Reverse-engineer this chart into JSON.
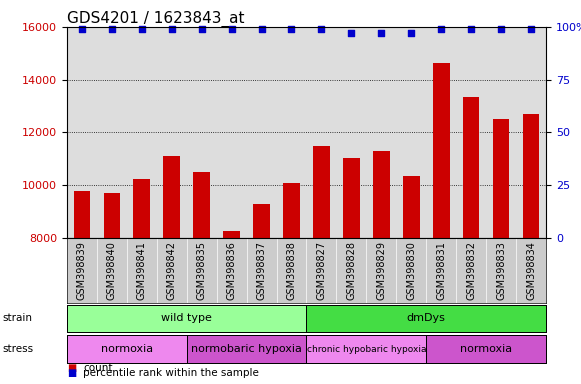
{
  "title": "GDS4201 / 1623843_at",
  "samples": [
    "GSM398839",
    "GSM398840",
    "GSM398841",
    "GSM398842",
    "GSM398835",
    "GSM398836",
    "GSM398837",
    "GSM398838",
    "GSM398827",
    "GSM398828",
    "GSM398829",
    "GSM398830",
    "GSM398831",
    "GSM398832",
    "GSM398833",
    "GSM398834"
  ],
  "counts": [
    9800,
    9700,
    10250,
    11100,
    10500,
    8250,
    9300,
    10100,
    11500,
    11050,
    11300,
    10350,
    14650,
    13350,
    12500,
    12700
  ],
  "percentile_ranks": [
    99,
    99,
    99,
    99,
    99,
    99,
    99,
    99,
    99,
    97,
    97,
    97,
    99,
    99,
    99,
    99
  ],
  "bar_color": "#cc0000",
  "dot_color": "#0000cc",
  "ylim_left": [
    8000,
    16000
  ],
  "ylim_right": [
    0,
    100
  ],
  "yticks_left": [
    8000,
    10000,
    12000,
    14000,
    16000
  ],
  "yticks_right": [
    0,
    25,
    50,
    75,
    100
  ],
  "strain_groups": [
    {
      "label": "wild type",
      "start": 0,
      "end": 8,
      "color": "#99ff99"
    },
    {
      "label": "dmDys",
      "start": 8,
      "end": 16,
      "color": "#44dd44"
    }
  ],
  "stress_groups": [
    {
      "label": "normoxia",
      "start": 0,
      "end": 4,
      "color": "#ee88ee"
    },
    {
      "label": "normobaric hypoxia",
      "start": 4,
      "end": 8,
      "color": "#cc55cc"
    },
    {
      "label": "chronic hypobaric hypoxia",
      "start": 8,
      "end": 12,
      "color": "#ee88ee"
    },
    {
      "label": "normoxia",
      "start": 12,
      "end": 16,
      "color": "#cc55cc"
    }
  ],
  "background_color": "#ffffff",
  "plot_bg_color": "#dddddd",
  "label_bg_color": "#cccccc",
  "title_fontsize": 11,
  "tick_label_fontsize": 7,
  "bar_width": 0.55
}
